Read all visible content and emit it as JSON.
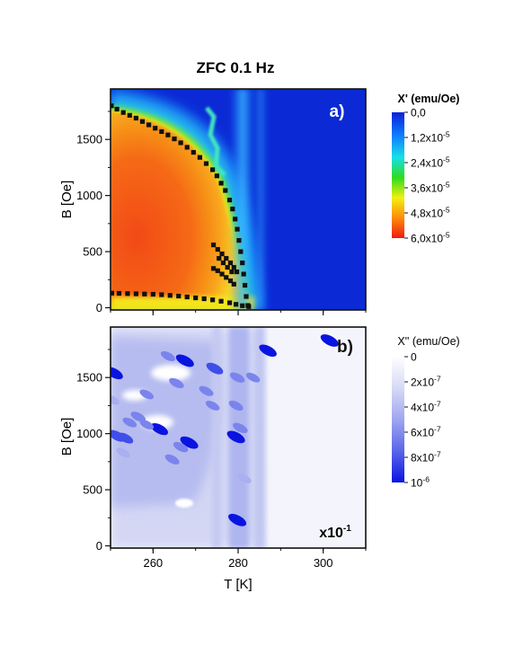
{
  "figure": {
    "title": "ZFC 0.1 Hz",
    "xlabel": "T [K]"
  },
  "chart_data": [
    {
      "type": "heatmap",
      "panel_label": "a)",
      "ylabel": "B [Oe]",
      "xlim": [
        250,
        310
      ],
      "ylim": [
        -20,
        1950
      ],
      "x_ticks": [
        260,
        280,
        300
      ],
      "y_ticks": [
        0,
        500,
        1000,
        1500
      ],
      "y_tick_labels": [
        "0",
        "500",
        "1000",
        "1500"
      ],
      "colorbar": {
        "title": "X' (emu/Oe)",
        "labels": [
          "0,0",
          "1,2x10",
          "2,4x10",
          "3,6x10",
          "4,8x10",
          "6,0x10"
        ],
        "exponent": "-5",
        "values": [
          0.0,
          1.2e-05,
          2.4e-05,
          3.6e-05,
          4.8e-05,
          6e-05
        ],
        "colors": [
          "#0a1fd8",
          "#0f7bff",
          "#16e0e6",
          "#2edc1c",
          "#f2ef12",
          "#ff8a0a",
          "#ef1b10"
        ]
      },
      "markers": [
        {
          "name": "upper boundary",
          "points": [
            [
              250.2,
              1800
            ],
            [
              251.5,
              1770
            ],
            [
              253,
              1740
            ],
            [
              254.5,
              1715
            ],
            [
              256,
              1690
            ],
            [
              257.5,
              1660
            ],
            [
              259,
              1630
            ],
            [
              260.5,
              1600
            ],
            [
              262,
              1570
            ],
            [
              263.5,
              1540
            ],
            [
              265,
              1505
            ],
            [
              266.5,
              1470
            ],
            [
              268,
              1430
            ],
            [
              269.5,
              1385
            ],
            [
              271,
              1340
            ],
            [
              272.5,
              1285
            ],
            [
              274,
              1230
            ],
            [
              275,
              1175
            ],
            [
              276,
              1110
            ],
            [
              277,
              1045
            ],
            [
              278,
              960
            ],
            [
              278.7,
              880
            ],
            [
              279.3,
              790
            ],
            [
              279.8,
              700
            ],
            [
              280.2,
              600
            ],
            [
              280.6,
              500
            ],
            [
              281,
              400
            ],
            [
              281.3,
              300
            ],
            [
              281.6,
              200
            ],
            [
              281.9,
              100
            ],
            [
              282.3,
              20
            ]
          ]
        },
        {
          "name": "lower boundary",
          "points": [
            [
              250.3,
              130
            ],
            [
              252,
              128
            ],
            [
              254,
              126
            ],
            [
              256,
              124
            ],
            [
              258,
              122
            ],
            [
              260,
              120
            ],
            [
              262,
              116
            ],
            [
              264,
              110
            ],
            [
              266,
              104
            ],
            [
              268,
              96
            ],
            [
              270,
              88
            ],
            [
              272,
              80
            ],
            [
              274,
              70
            ],
            [
              276,
              58
            ],
            [
              278,
              44
            ],
            [
              279.5,
              30
            ],
            [
              281,
              18
            ],
            [
              282.5,
              10
            ]
          ]
        },
        {
          "name": "inner boundary 1",
          "points": [
            [
              274.2,
              560
            ],
            [
              275.2,
              520
            ],
            [
              276.2,
              480
            ],
            [
              277.2,
              440
            ],
            [
              278.2,
              400
            ],
            [
              279,
              360
            ],
            [
              279.7,
              320
            ]
          ]
        },
        {
          "name": "inner boundary 2",
          "points": [
            [
              274.2,
              350
            ],
            [
              275.2,
              330
            ],
            [
              276.2,
              300
            ],
            [
              277.2,
              270
            ],
            [
              278.2,
              240
            ],
            [
              279,
              210
            ]
          ]
        },
        {
          "name": "inner boundary 3",
          "points": [
            [
              275.5,
              440
            ],
            [
              276.5,
              400
            ],
            [
              277.5,
              360
            ],
            [
              278.5,
              320
            ]
          ]
        }
      ]
    },
    {
      "type": "heatmap",
      "panel_label": "b)",
      "ylabel": "B [Oe]",
      "xlabel": "T [K]",
      "xlim": [
        250,
        310
      ],
      "ylim": [
        -20,
        1950
      ],
      "x_ticks": [
        260,
        280,
        300
      ],
      "x_tick_labels": [
        "260",
        "280",
        "300"
      ],
      "y_ticks": [
        0,
        500,
        1000,
        1500
      ],
      "y_tick_labels": [
        "0",
        "500",
        "1000",
        "1500"
      ],
      "scale_label": "x10",
      "scale_exponent": "-1",
      "colorbar": {
        "title": "X'' (emu/Oe)",
        "labels": [
          "0",
          "2x10",
          "4x10",
          "6x10",
          "8x10",
          "10"
        ],
        "exponents": [
          "",
          "-7",
          "-7",
          "-7",
          "-7",
          "-6"
        ],
        "values": [
          0,
          2e-07,
          4e-07,
          6e-07,
          8e-07,
          1e-06
        ],
        "colors": [
          "#ffffff",
          "#d6d9f4",
          "#a9aff0",
          "#7b84ec",
          "#3f4ee8",
          "#0a14e0"
        ]
      },
      "blobs": [
        {
          "x": 250.8,
          "y": 1540,
          "v": 1.0
        },
        {
          "x": 263.5,
          "y": 1690,
          "v": 0.55
        },
        {
          "x": 267.5,
          "y": 1650,
          "v": 1.0
        },
        {
          "x": 274.5,
          "y": 1580,
          "v": 0.85
        },
        {
          "x": 265.5,
          "y": 1450,
          "v": 0.6
        },
        {
          "x": 272.5,
          "y": 1380,
          "v": 0.55
        },
        {
          "x": 256.5,
          "y": 1150,
          "v": 0.6
        },
        {
          "x": 254.5,
          "y": 1100,
          "v": 0.5
        },
        {
          "x": 261.5,
          "y": 1040,
          "v": 0.9
        },
        {
          "x": 258.5,
          "y": 1080,
          "v": 0.5
        },
        {
          "x": 251.5,
          "y": 980,
          "v": 0.85
        },
        {
          "x": 253.5,
          "y": 960,
          "v": 0.7
        },
        {
          "x": 268.5,
          "y": 920,
          "v": 1.0
        },
        {
          "x": 266.5,
          "y": 880,
          "v": 0.6
        },
        {
          "x": 264.5,
          "y": 770,
          "v": 0.55
        },
        {
          "x": 253,
          "y": 830,
          "v": 0.45
        },
        {
          "x": 279.8,
          "y": 1500,
          "v": 0.6
        },
        {
          "x": 279.5,
          "y": 1250,
          "v": 0.55
        },
        {
          "x": 280.5,
          "y": 1050,
          "v": 0.6
        },
        {
          "x": 279.5,
          "y": 970,
          "v": 1.0
        },
        {
          "x": 281.5,
          "y": 600,
          "v": 0.45
        },
        {
          "x": 279.8,
          "y": 230,
          "v": 1.0
        },
        {
          "x": 287,
          "y": 1740,
          "v": 0.95
        },
        {
          "x": 301.5,
          "y": 1830,
          "v": 1.0
        },
        {
          "x": 283.5,
          "y": 1500,
          "v": 0.5
        },
        {
          "x": 274,
          "y": 1250,
          "v": 0.5
        },
        {
          "x": 258.5,
          "y": 1350,
          "v": 0.5
        },
        {
          "x": 250.5,
          "y": 1300,
          "v": 0.45
        }
      ]
    }
  ]
}
